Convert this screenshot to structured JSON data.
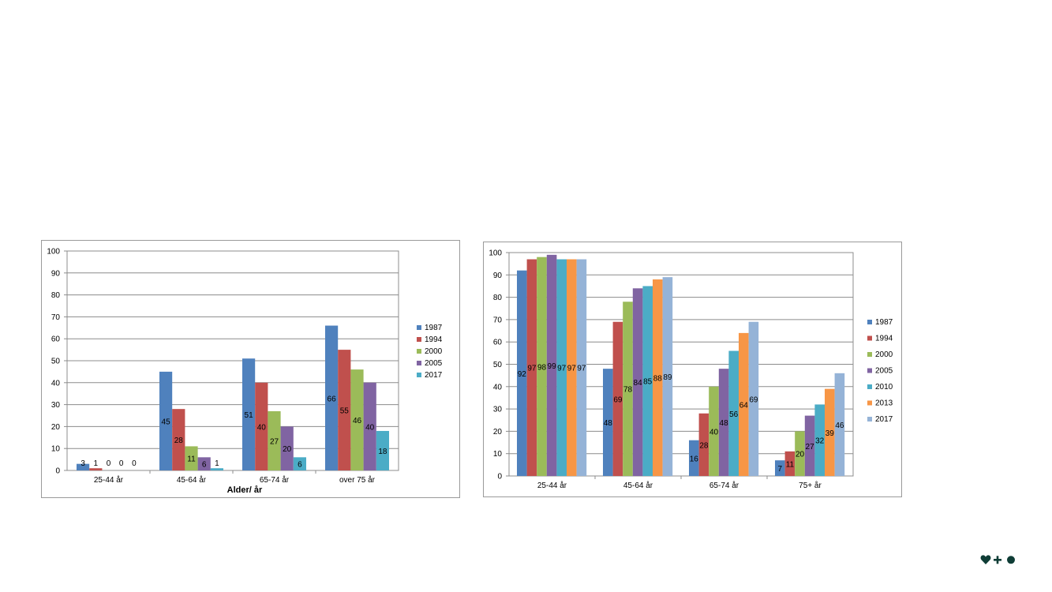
{
  "chart_data": [
    {
      "type": "bar",
      "title": "",
      "xlabel": "Alder/ år",
      "ylabel": "",
      "ylim": [
        0,
        100
      ],
      "yticks": [
        0,
        10,
        20,
        30,
        40,
        50,
        60,
        70,
        80,
        90,
        100
      ],
      "grid": true,
      "legend_position": "right",
      "data_labels": true,
      "categories": [
        "25-44 år",
        "45-64 år",
        "65-74 år",
        "over 75 år"
      ],
      "series": [
        {
          "name": "1987",
          "color": "#4f81bd",
          "values": [
            3,
            45,
            51,
            66
          ]
        },
        {
          "name": "1994",
          "color": "#c0504d",
          "values": [
            1,
            28,
            40,
            55
          ]
        },
        {
          "name": "2000",
          "color": "#9bbb59",
          "values": [
            0,
            11,
            27,
            46
          ]
        },
        {
          "name": "2005",
          "color": "#8064a2",
          "values": [
            0,
            6,
            20,
            40
          ]
        },
        {
          "name": "2017",
          "color": "#4bacc6",
          "values": [
            0,
            1,
            6,
            18
          ]
        }
      ]
    },
    {
      "type": "bar",
      "title": "",
      "xlabel": "",
      "ylabel": "",
      "ylim": [
        0,
        100
      ],
      "yticks": [
        0,
        10,
        20,
        30,
        40,
        50,
        60,
        70,
        80,
        90,
        100
      ],
      "grid": true,
      "legend_position": "right",
      "data_labels": true,
      "categories": [
        "25-44 år",
        "45-64 år",
        "65-74 år",
        "75+ år"
      ],
      "series": [
        {
          "name": "1987",
          "color": "#4f81bd",
          "values": [
            92,
            48,
            16,
            7
          ]
        },
        {
          "name": "1994",
          "color": "#c0504d",
          "values": [
            97,
            69,
            28,
            11
          ]
        },
        {
          "name": "2000",
          "color": "#9bbb59",
          "values": [
            98,
            78,
            40,
            20
          ]
        },
        {
          "name": "2005",
          "color": "#8064a2",
          "values": [
            99,
            84,
            48,
            27
          ]
        },
        {
          "name": "2010",
          "color": "#4bacc6",
          "values": [
            97,
            85,
            56,
            32
          ]
        },
        {
          "name": "2013",
          "color": "#f79646",
          "values": [
            97,
            88,
            64,
            39
          ]
        },
        {
          "name": "2017",
          "color": "#95b3d7",
          "values": [
            97,
            89,
            69,
            46
          ]
        }
      ]
    }
  ],
  "logo": {
    "icon": "heart-plus-dot-logo",
    "color": "#0f3d36"
  }
}
